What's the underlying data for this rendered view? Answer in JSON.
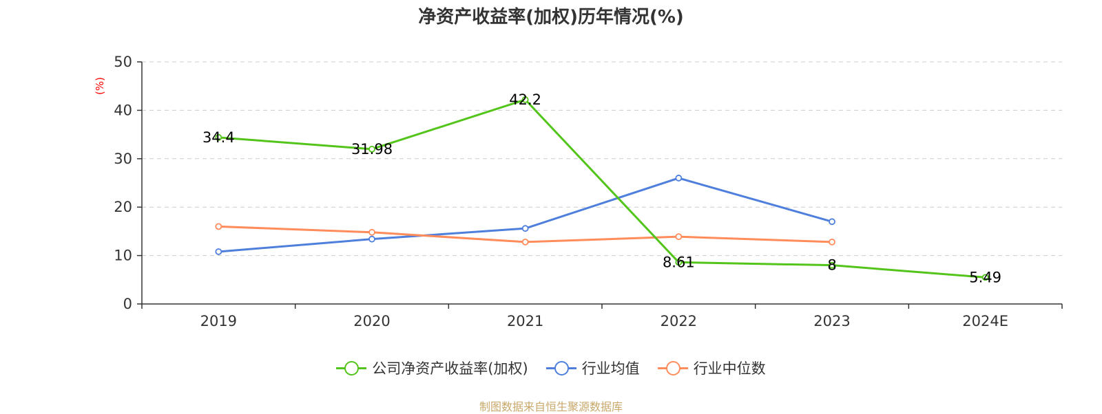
{
  "title": "净资产收益率(加权)历年情况(%)",
  "source_note": "制图数据来自恒生聚源数据库",
  "colors": {
    "grid": "#cccccc",
    "axis": "#333333",
    "unit": "#ff0000"
  },
  "chart_data": {
    "type": "line",
    "title": "净资产收益率(加权)历年情况(%)",
    "ylabel": "(%)",
    "ylim": [
      0,
      50
    ],
    "yticks": [
      0,
      10,
      20,
      30,
      40,
      50
    ],
    "grid": true,
    "legend_position": "bottom",
    "categories": [
      "2019",
      "2020",
      "2021",
      "2022",
      "2023",
      "2024E"
    ],
    "series": [
      {
        "name": "公司净资产收益率(加权)",
        "color": "#52c41a",
        "values": [
          34.4,
          31.98,
          42.2,
          8.61,
          8,
          5.49
        ],
        "labels": [
          "34.4",
          "31.98",
          "42.2",
          "8.61",
          "8",
          "5.49"
        ]
      },
      {
        "name": "行业均值",
        "color": "#4e7fdc",
        "values": [
          10.8,
          13.4,
          15.6,
          26,
          17,
          null
        ]
      },
      {
        "name": "行业中位数",
        "color": "#ff8c5a",
        "values": [
          16,
          14.8,
          12.8,
          13.9,
          12.8,
          null
        ]
      }
    ]
  }
}
